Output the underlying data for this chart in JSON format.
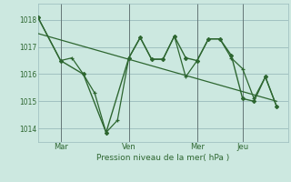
{
  "bg_color": "#cce8e0",
  "grid_color": "#99bbbb",
  "line_color": "#2d6630",
  "text_color": "#2d6630",
  "ylim": [
    1013.5,
    1018.6
  ],
  "yticks": [
    1014,
    1015,
    1016,
    1017,
    1018
  ],
  "day_labels": [
    "Mar",
    "Ven",
    "Mer",
    "Jeu"
  ],
  "day_positions": [
    1,
    4,
    7,
    9
  ],
  "vline_positions": [
    1,
    4,
    7,
    9
  ],
  "xlim": [
    0,
    11
  ],
  "xlabel": "Pression niveau de la mer( hPa )",
  "series1_x": [
    0,
    1,
    1.5,
    2,
    2.5,
    3,
    3.5,
    4,
    4.5,
    5,
    5.5,
    6,
    6.5,
    7,
    7.5,
    8,
    8.5,
    9,
    9.5,
    10,
    10.5
  ],
  "series1_y": [
    1018.1,
    1016.5,
    1016.6,
    1016.0,
    1015.3,
    1013.85,
    1014.3,
    1016.6,
    1017.35,
    1016.55,
    1016.55,
    1017.4,
    1015.9,
    1016.5,
    1017.3,
    1017.3,
    1016.6,
    1016.2,
    1015.1,
    1015.9,
    1014.8
  ],
  "series2_x": [
    0,
    1,
    2,
    3,
    4,
    4.5,
    5,
    5.5,
    6,
    6.5,
    7,
    7.5,
    8,
    8.5,
    9,
    9.5,
    10,
    10.5
  ],
  "series2_y": [
    1018.1,
    1016.5,
    1016.0,
    1013.85,
    1016.6,
    1017.35,
    1016.55,
    1016.55,
    1017.4,
    1016.6,
    1016.5,
    1017.3,
    1017.3,
    1016.7,
    1015.1,
    1015.0,
    1015.9,
    1014.8
  ],
  "trend_x": [
    0,
    10.5
  ],
  "trend_y": [
    1017.5,
    1015.0
  ]
}
